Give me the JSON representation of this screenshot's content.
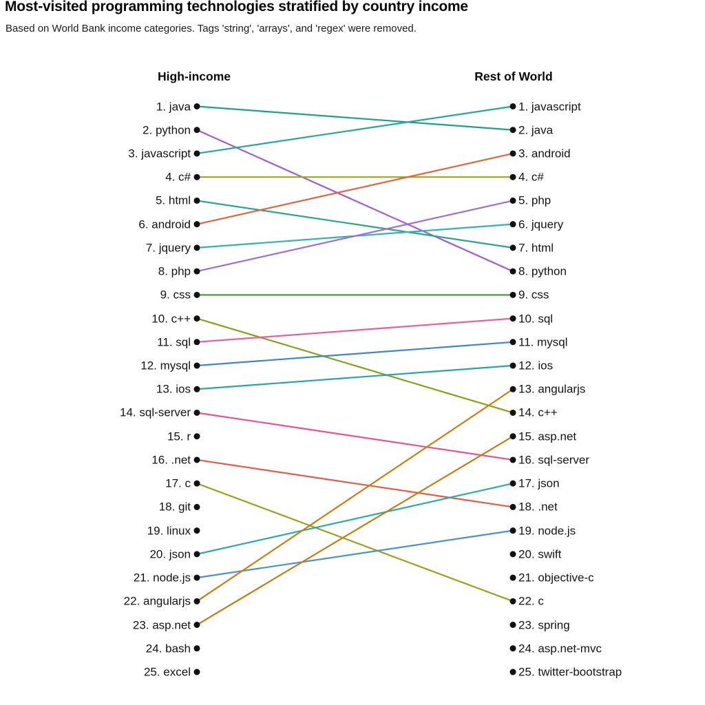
{
  "title": "Most-visited programming technologies stratified by country income",
  "subtitle": "Based on World Bank income categories. Tags 'string', 'arrays', and 'regex' were removed.",
  "chart_data": {
    "type": "line",
    "variant": "slopegraph",
    "columns": [
      "High-income",
      "Rest of World"
    ],
    "dot_color": "#111111",
    "left": [
      "1. java",
      "2. python",
      "3. javascript",
      "4. c#",
      "5. html",
      "6. android",
      "7. jquery",
      "8. php",
      "9. css",
      "10. c++",
      "11. sql",
      "12. mysql",
      "13. ios",
      "14. sql-server",
      "15. r",
      "16. .net",
      "17. c",
      "18. git",
      "19. linux",
      "20. json",
      "21. node.js",
      "22. angularjs",
      "23. asp.net",
      "24. bash",
      "25. excel"
    ],
    "right": [
      "1. javascript",
      "2. java",
      "3. android",
      "4. c#",
      "5. php",
      "6. jquery",
      "7. html",
      "8. python",
      "9. css",
      "10. sql",
      "11. mysql",
      "12. ios",
      "13. angularjs",
      "14. c++",
      "15. asp.net",
      "16. sql-server",
      "17. json",
      "18. .net",
      "19. node.js",
      "20. swift",
      "21. objective-c",
      "22. c",
      "23. spring",
      "24. asp.net-mvc",
      "25. twitter-bootstrap"
    ],
    "links": [
      {
        "tag": "java",
        "from": 1,
        "to": 2,
        "color": "#1fa187"
      },
      {
        "tag": "python",
        "from": 2,
        "to": 8,
        "color": "#a35bd6"
      },
      {
        "tag": "javascript",
        "from": 3,
        "to": 1,
        "color": "#23a8a0"
      },
      {
        "tag": "c#",
        "from": 4,
        "to": 4,
        "color": "#9ba818"
      },
      {
        "tag": "html",
        "from": 5,
        "to": 7,
        "color": "#27a58e"
      },
      {
        "tag": "android",
        "from": 6,
        "to": 3,
        "color": "#e0653f"
      },
      {
        "tag": "jquery",
        "from": 7,
        "to": 6,
        "color": "#2fb3b3"
      },
      {
        "tag": "php",
        "from": 8,
        "to": 5,
        "color": "#a06cd9"
      },
      {
        "tag": "css",
        "from": 9,
        "to": 9,
        "color": "#3ca52a"
      },
      {
        "tag": "c++",
        "from": 10,
        "to": 14,
        "color": "#8aa018"
      },
      {
        "tag": "sql",
        "from": 11,
        "to": 10,
        "color": "#ef5a9d"
      },
      {
        "tag": "mysql",
        "from": 12,
        "to": 11,
        "color": "#3d86ca"
      },
      {
        "tag": "ios",
        "from": 13,
        "to": 12,
        "color": "#27a5a5"
      },
      {
        "tag": "sql-server",
        "from": 14,
        "to": 16,
        "color": "#ea4f93"
      },
      {
        "tag": ".net",
        "from": 16,
        "to": 18,
        "color": "#e85948"
      },
      {
        "tag": "c",
        "from": 17,
        "to": 22,
        "color": "#98a51c"
      },
      {
        "tag": "json",
        "from": 20,
        "to": 17,
        "color": "#2aabab"
      },
      {
        "tag": "node.js",
        "from": 21,
        "to": 19,
        "color": "#4b8fd5"
      },
      {
        "tag": "angularjs",
        "from": 22,
        "to": 13,
        "color": "#cf7d0a"
      },
      {
        "tag": "asp.net",
        "from": 23,
        "to": 15,
        "color": "#c67b0e"
      }
    ]
  }
}
